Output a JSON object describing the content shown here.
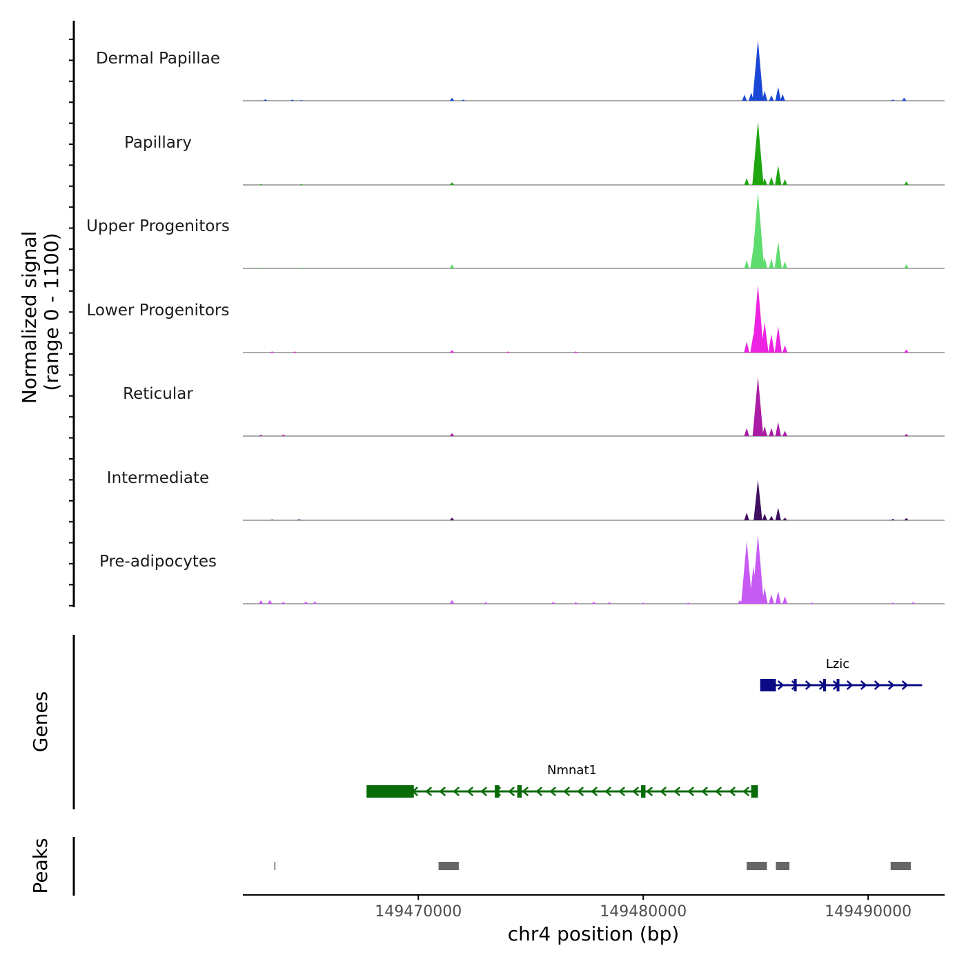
{
  "chart_data": {
    "type": "area",
    "title": "",
    "signal_axis_label": [
      "Normalized signal",
      "(range 0 - 1100)"
    ],
    "signal_range": [
      0,
      1100
    ],
    "xlabel": "chr4 position (bp)",
    "xlim": [
      149462200,
      149493400
    ],
    "x_ticks": [
      {
        "value": 149470000,
        "label": "149470000"
      },
      {
        "value": 149480000,
        "label": "149480000"
      },
      {
        "value": 149490000,
        "label": "149490000"
      }
    ],
    "tracks": [
      {
        "name": "Dermal Papillae",
        "color": "#1a47d6",
        "peaks": [
          [
            149463200,
            25
          ],
          [
            149464400,
            20
          ],
          [
            149464800,
            15
          ],
          [
            149471500,
            55
          ],
          [
            149472000,
            20
          ],
          [
            149484500,
            110
          ],
          [
            149484800,
            150
          ],
          [
            149485100,
            1100
          ],
          [
            149485400,
            180
          ],
          [
            149485700,
            100
          ],
          [
            149486000,
            250
          ],
          [
            149486200,
            120
          ],
          [
            149491100,
            20
          ],
          [
            149491600,
            55
          ]
        ]
      },
      {
        "name": "Papillary",
        "color": "#1ea50f",
        "peaks": [
          [
            149463000,
            15
          ],
          [
            149464800,
            15
          ],
          [
            149471500,
            45
          ],
          [
            149484600,
            120
          ],
          [
            149485100,
            1100
          ],
          [
            149485400,
            120
          ],
          [
            149485700,
            140
          ],
          [
            149486000,
            340
          ],
          [
            149486300,
            100
          ],
          [
            149491700,
            60
          ]
        ]
      },
      {
        "name": "Upper Progenitors",
        "color": "#5fdc6e",
        "peaks": [
          [
            149463000,
            15
          ],
          [
            149464800,
            15
          ],
          [
            149471500,
            60
          ],
          [
            149484600,
            120
          ],
          [
            149484900,
            300
          ],
          [
            149485100,
            1100
          ],
          [
            149485400,
            160
          ],
          [
            149485700,
            140
          ],
          [
            149486000,
            390
          ],
          [
            149486300,
            100
          ],
          [
            149491700,
            60
          ]
        ]
      },
      {
        "name": "Lower Progenitors",
        "color": "#ee22e3",
        "peaks": [
          [
            149463500,
            20
          ],
          [
            149464500,
            20
          ],
          [
            149471500,
            40
          ],
          [
            149474000,
            20
          ],
          [
            149477000,
            20
          ],
          [
            149484600,
            180
          ],
          [
            149484900,
            300
          ],
          [
            149485100,
            1100
          ],
          [
            149485400,
            500
          ],
          [
            149485700,
            300
          ],
          [
            149486000,
            430
          ],
          [
            149486300,
            120
          ],
          [
            149491700,
            50
          ]
        ]
      },
      {
        "name": "Reticular",
        "color": "#ab1ca4",
        "peaks": [
          [
            149463000,
            25
          ],
          [
            149464000,
            30
          ],
          [
            149471500,
            55
          ],
          [
            149484600,
            150
          ],
          [
            149485100,
            1100
          ],
          [
            149485400,
            180
          ],
          [
            149485700,
            150
          ],
          [
            149486000,
            260
          ],
          [
            149486300,
            100
          ],
          [
            149491700,
            40
          ]
        ]
      },
      {
        "name": "Intermediate",
        "color": "#3e0f5e",
        "peaks": [
          [
            149463500,
            20
          ],
          [
            149464700,
            25
          ],
          [
            149471500,
            60
          ],
          [
            149484600,
            170
          ],
          [
            149485100,
            900
          ],
          [
            149485400,
            150
          ],
          [
            149485700,
            100
          ],
          [
            149486000,
            280
          ],
          [
            149486300,
            60
          ],
          [
            149491100,
            30
          ],
          [
            149491700,
            50
          ]
        ]
      },
      {
        "name": "Pre-adipocytes",
        "color": "#c65af3",
        "peaks": [
          [
            149463000,
            55
          ],
          [
            149463400,
            60
          ],
          [
            149464000,
            30
          ],
          [
            149465000,
            35
          ],
          [
            149465400,
            35
          ],
          [
            149471500,
            60
          ],
          [
            149473000,
            25
          ],
          [
            149476000,
            30
          ],
          [
            149477000,
            25
          ],
          [
            149477800,
            30
          ],
          [
            149478500,
            25
          ],
          [
            149480000,
            20
          ],
          [
            149482000,
            20
          ],
          [
            149484300,
            60
          ],
          [
            149484600,
            1000
          ],
          [
            149484900,
            600
          ],
          [
            149485100,
            1100
          ],
          [
            149485400,
            250
          ],
          [
            149485700,
            150
          ],
          [
            149486000,
            200
          ],
          [
            149486300,
            120
          ],
          [
            149487500,
            20
          ],
          [
            149491100,
            20
          ],
          [
            149492000,
            25
          ]
        ]
      }
    ],
    "genes": [
      {
        "name": "Lzic",
        "strand": "+",
        "color": "#0b0b85",
        "start": 149485200,
        "end": 149492400,
        "exons": [
          [
            149485200,
            149485900
          ],
          [
            149486700,
            149486800
          ],
          [
            149488000,
            149488100
          ],
          [
            149488600,
            149488700
          ]
        ]
      },
      {
        "name": "Nmnat1",
        "strand": "-",
        "color": "#086b08",
        "start": 149467700,
        "end": 149485100,
        "exons": [
          [
            149467700,
            149469800
          ],
          [
            149473400,
            149473600
          ],
          [
            149474400,
            149474600
          ],
          [
            149479900,
            149480100
          ],
          [
            149484800,
            149485100
          ]
        ]
      }
    ],
    "peaks": [
      [
        149463600,
        149463620
      ],
      [
        149470900,
        149471800
      ],
      [
        149484600,
        149485500
      ],
      [
        149485900,
        149486500
      ],
      [
        149491000,
        149491900
      ]
    ],
    "panel_labels": {
      "genes": "Genes",
      "peaks": "Peaks"
    },
    "peak_color": "#666666"
  }
}
